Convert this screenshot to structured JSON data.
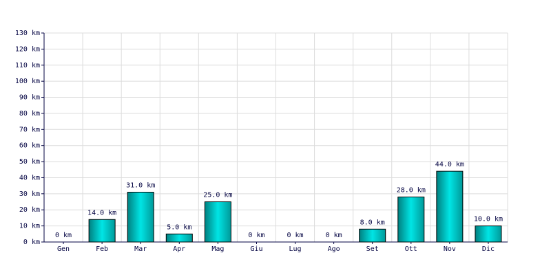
{
  "chart_data": {
    "type": "bar",
    "categories": [
      "Gen",
      "Feb",
      "Mar",
      "Apr",
      "Mag",
      "Giu",
      "Lug",
      "Ago",
      "Set",
      "Ott",
      "Nov",
      "Dic"
    ],
    "values": [
      0,
      14,
      31,
      5,
      25,
      0,
      0,
      0,
      8,
      28,
      44,
      10
    ],
    "value_labels": [
      "0 km",
      "14.0 km",
      "31.0 km",
      "5.0 km",
      "25.0 km",
      "0 km",
      "0 km",
      "0 km",
      "8.0 km",
      "28.0 km",
      "44.0 km",
      "10.0 km"
    ],
    "color": "#00e5e5",
    "ylim": [
      0,
      130
    ],
    "yticks": [
      {
        "value": 0,
        "label": "0 km"
      },
      {
        "value": 10,
        "label": "10 km"
      },
      {
        "value": 20,
        "label": "20 km"
      },
      {
        "value": 30,
        "label": "30 km"
      },
      {
        "value": 40,
        "label": "40 km"
      },
      {
        "value": 50,
        "label": "50 km"
      },
      {
        "value": 60,
        "label": "60 km"
      },
      {
        "value": 70,
        "label": "70 km"
      },
      {
        "value": 80,
        "label": "80 km"
      },
      {
        "value": 90,
        "label": "90 km"
      },
      {
        "value": 100,
        "label": "100 km"
      },
      {
        "value": 110,
        "label": "110 km"
      },
      {
        "value": 120,
        "label": "120 km"
      },
      {
        "value": 130,
        "label": "130 km"
      }
    ],
    "grid": true
  }
}
